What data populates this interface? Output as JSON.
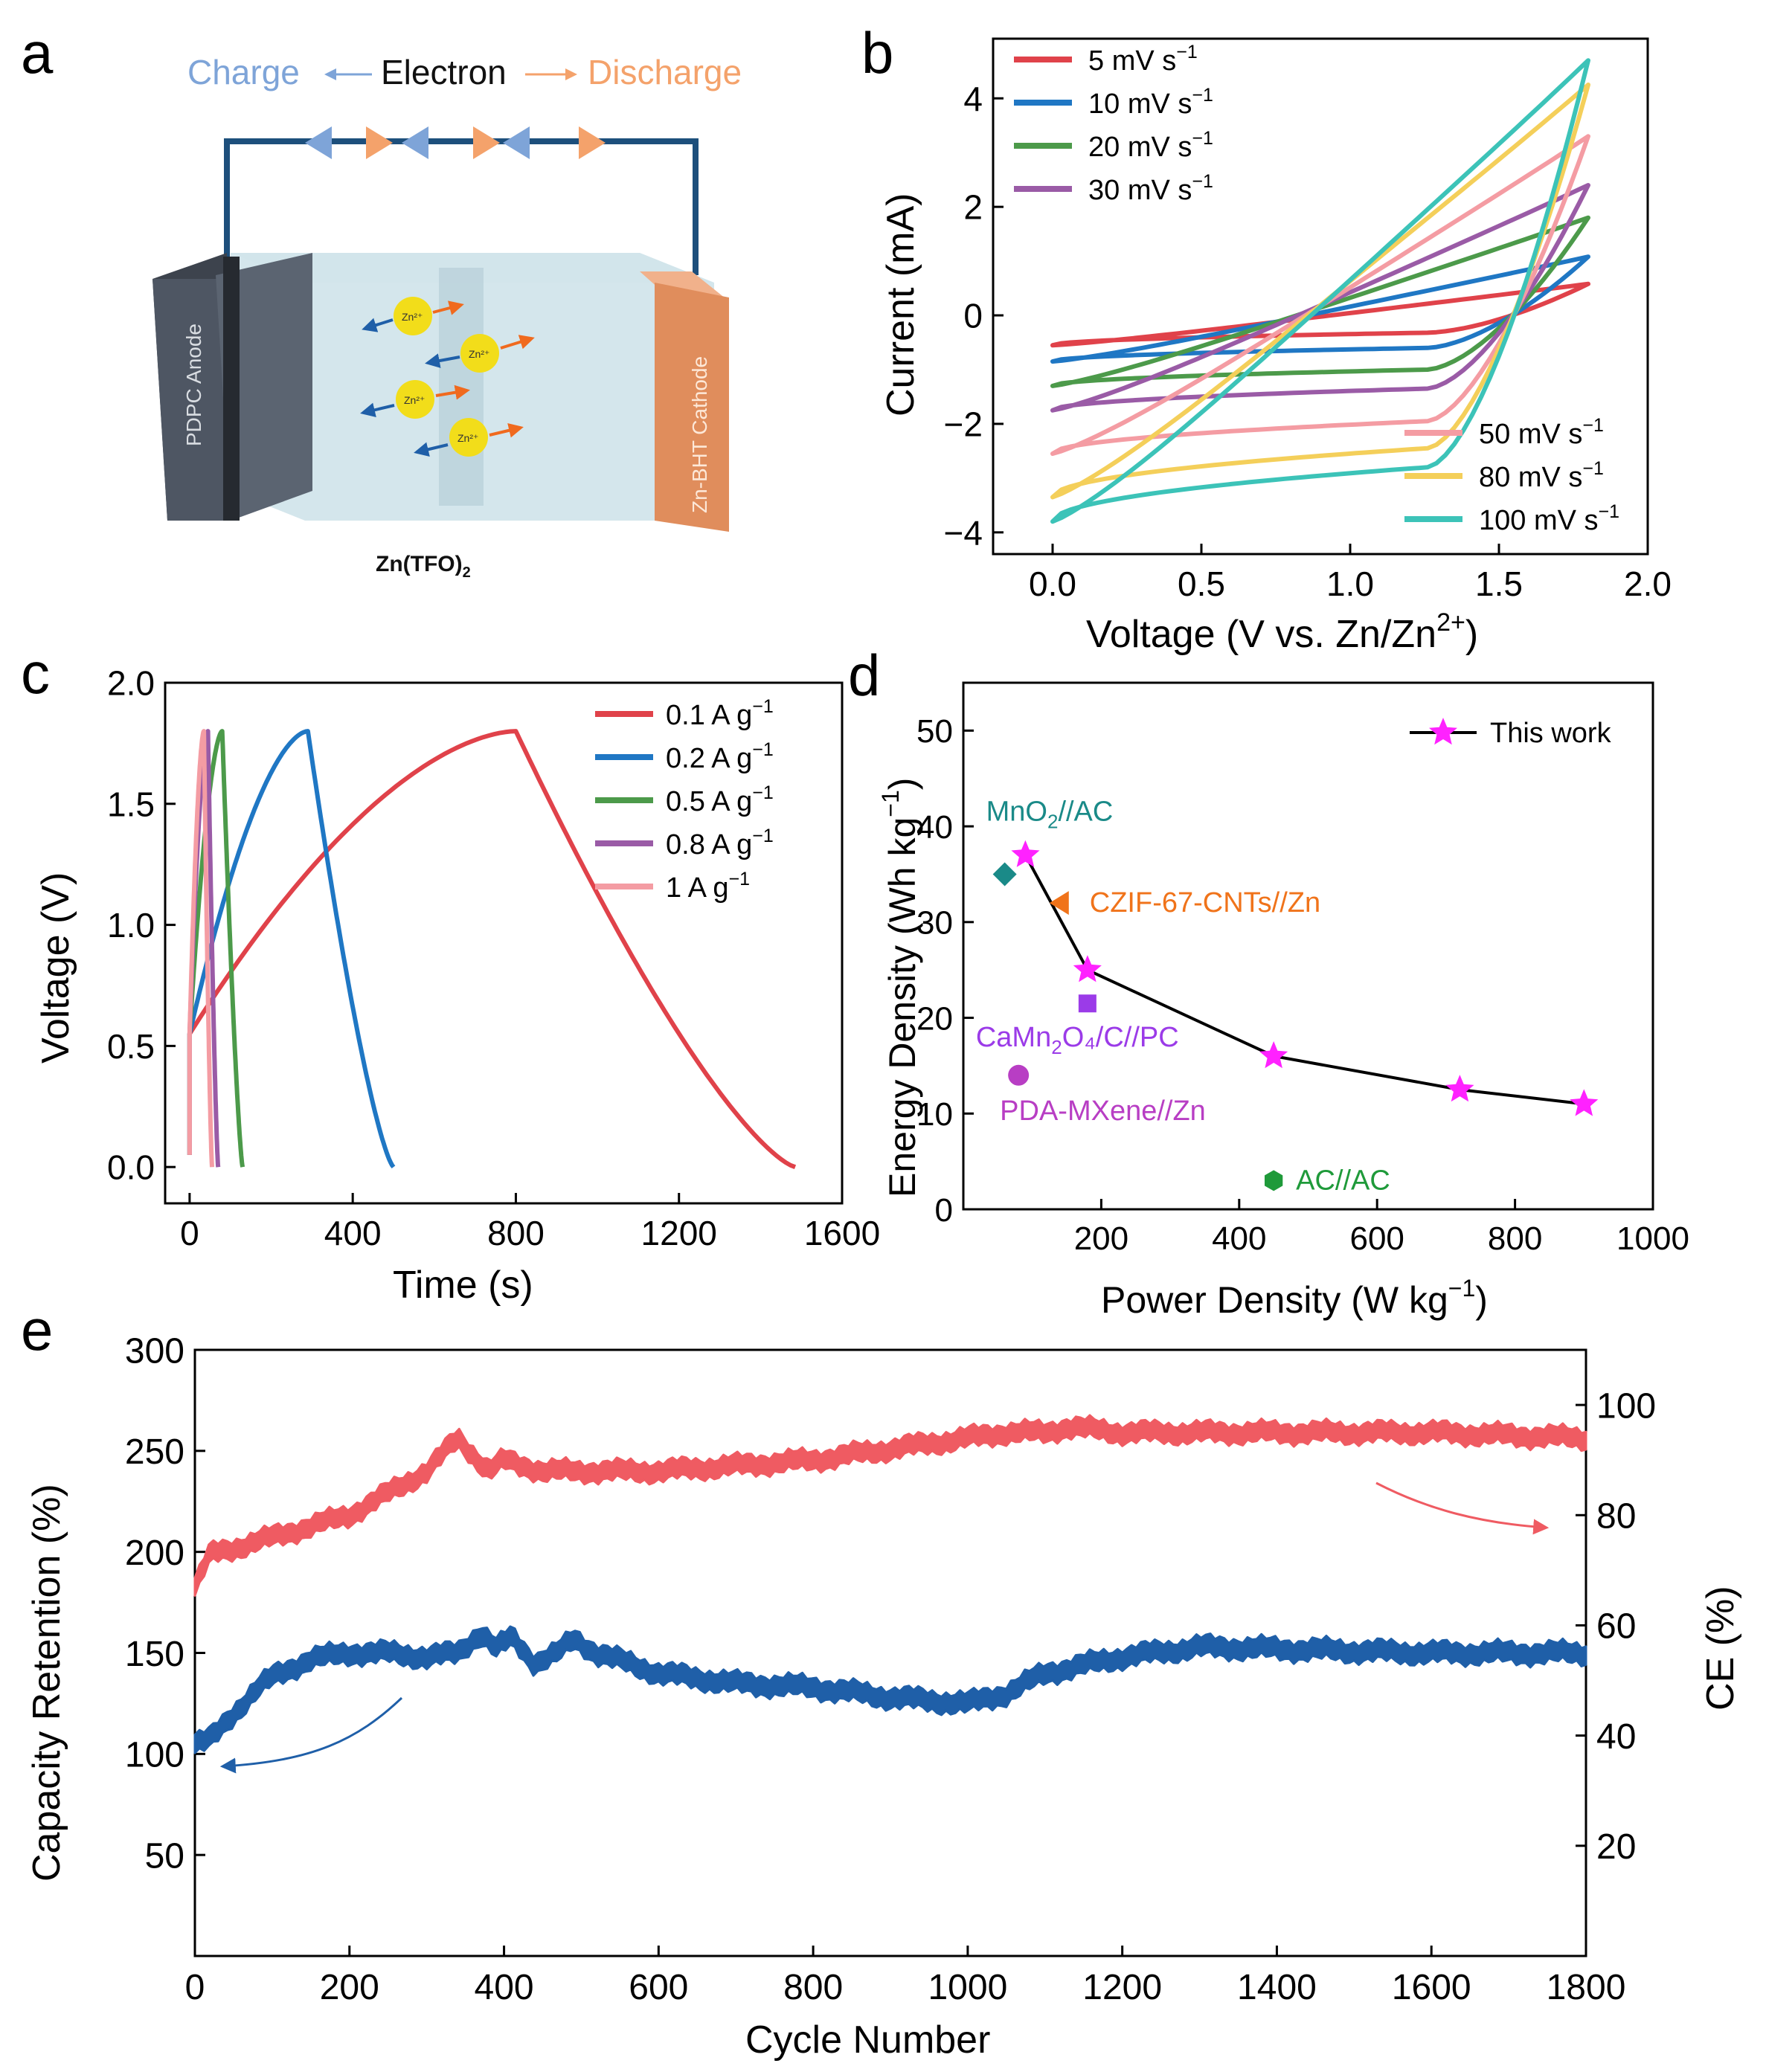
{
  "panel_labels": {
    "a": "a",
    "b": "b",
    "c": "c",
    "d": "d",
    "e": "e"
  },
  "panel_a": {
    "charge_label": "Charge",
    "electron_label": "Electron",
    "discharge_label": "Discharge",
    "anode_label": "PDPC Anode",
    "cathode_label": "Zn-BHT Cathode",
    "ion_label": "Zn²⁺",
    "electrolyte_label": "Zn(TFO)",
    "electrolyte_sub": "2",
    "colors": {
      "charge": "#7ea4d8",
      "discharge": "#f4a26b",
      "wire": "#1d4f7c",
      "anode": "#4e5663",
      "cathode": "#e08d5c",
      "electrolyte": "#cfe3ea",
      "ion": "#f2dd1a"
    }
  },
  "chart_data": [
    {
      "id": "b",
      "type": "line",
      "xlabel": "Voltage (V vs. Zn/Zn",
      "xlabel_sup": "2+",
      "xlabel_end": ")",
      "ylabel": "Current (mA)",
      "xlim": [
        -0.2,
        2.0
      ],
      "ylim": [
        -4.4,
        5.1
      ],
      "xticks": [
        0.0,
        0.5,
        1.0,
        1.5,
        2.0
      ],
      "xtick_labels": [
        "0.0",
        "0.5",
        "1.0",
        "1.5",
        "2.0"
      ],
      "yticks": [
        -4,
        -2,
        0,
        2,
        4
      ],
      "ytick_labels": [
        "−4",
        "−2",
        "0",
        "2",
        "4"
      ],
      "series": [
        {
          "name": "5 mV s",
          "sup": "−1",
          "color": "#e0424a",
          "upper_start": -0.55,
          "upper_end": 0.58,
          "lower_start": -0.55,
          "lower_mid": -0.32,
          "lower_end": 0.58
        },
        {
          "name": "10 mV s",
          "sup": "−1",
          "color": "#1f77c4",
          "upper_start": -0.85,
          "upper_end": 1.08,
          "lower_start": -0.85,
          "lower_mid": -0.6,
          "lower_end": 1.08
        },
        {
          "name": "20 mV s",
          "sup": "−1",
          "color": "#4c9a4a",
          "upper_start": -1.3,
          "upper_end": 1.8,
          "lower_start": -1.3,
          "lower_mid": -1.0,
          "lower_end": 1.8
        },
        {
          "name": "30 mV s",
          "sup": "−1",
          "color": "#9a5ba6",
          "upper_start": -1.75,
          "upper_end": 2.4,
          "lower_start": -1.75,
          "lower_mid": -1.35,
          "lower_end": 2.4
        },
        {
          "name": "50 mV s",
          "sup": "−1",
          "color": "#f49ca3",
          "upper_start": -2.55,
          "upper_end": 3.3,
          "lower_start": -2.55,
          "lower_mid": -1.95,
          "lower_end": 3.3
        },
        {
          "name": "80 mV s",
          "sup": "−1",
          "color": "#f4cf5a",
          "upper_start": -3.35,
          "upper_end": 4.25,
          "lower_start": -3.35,
          "lower_mid": -2.45,
          "lower_end": 4.25
        },
        {
          "name": "100 mV s",
          "sup": "−1",
          "color": "#3cc3b8",
          "upper_start": -3.8,
          "upper_end": 4.7,
          "lower_start": -3.8,
          "lower_mid": -2.8,
          "lower_end": 4.7
        }
      ]
    },
    {
      "id": "c",
      "type": "line",
      "xlabel": "Time (s)",
      "ylabel": "Voltage (V)",
      "xlim": [
        -60,
        1600
      ],
      "ylim": [
        -0.15,
        2.0
      ],
      "xticks": [
        0,
        400,
        800,
        1200,
        1600
      ],
      "xtick_labels": [
        "0",
        "400",
        "800",
        "1200",
        "1600"
      ],
      "yticks": [
        0.0,
        0.5,
        1.0,
        1.5,
        2.0
      ],
      "ytick_labels": [
        "0.0",
        "0.5",
        "1.0",
        "1.5",
        "2.0"
      ],
      "series": [
        {
          "name": "0.1 A g",
          "sup": "−1",
          "color": "#e0424a",
          "t_charge": 800,
          "t_end": 1485
        },
        {
          "name": "0.2 A g",
          "sup": "−1",
          "color": "#1f77c4",
          "t_charge": 290,
          "t_end": 500
        },
        {
          "name": "0.5 A g",
          "sup": "−1",
          "color": "#4c9a4a",
          "t_charge": 80,
          "t_end": 130
        },
        {
          "name": "0.8 A g",
          "sup": "−1",
          "color": "#9a5ba6",
          "t_charge": 45,
          "t_end": 70
        },
        {
          "name": "1 A g",
          "sup": "−1",
          "color": "#f49ca3",
          "t_charge": 35,
          "t_end": 55
        }
      ]
    },
    {
      "id": "d",
      "type": "scatter",
      "xlabel": "Power Density (W kg",
      "xlabel_sup": "−1",
      "xlabel_end": ")",
      "ylabel": "Energy Density (Wh kg",
      "ylabel_sup": "−1",
      "ylabel_end": ")",
      "xlim": [
        0,
        1000
      ],
      "ylim": [
        0,
        55
      ],
      "xticks": [
        200,
        400,
        600,
        800,
        1000
      ],
      "xtick_labels": [
        "200",
        "400",
        "600",
        "800",
        "1000"
      ],
      "yticks": [
        0,
        10,
        20,
        30,
        40,
        50
      ],
      "ytick_labels": [
        "0",
        "10",
        "20",
        "30",
        "40",
        "50"
      ],
      "legend": "This work",
      "this_work": {
        "color": "#ff22ff",
        "x": [
          90,
          180,
          450,
          720,
          900
        ],
        "y": [
          37,
          25,
          16,
          12.5,
          11
        ]
      },
      "refs": [
        {
          "name": "MnO",
          "sub": "2",
          "rest": "//AC",
          "color": "#1a8a88",
          "shape": "diamond",
          "x": 60,
          "y": 35
        },
        {
          "name": "CZIF-67-CNTs//Zn",
          "sub": "",
          "rest": "",
          "color": "#f0731a",
          "shape": "triangle-left",
          "x": 140,
          "y": 32
        },
        {
          "name": "CaMn",
          "sub": "2",
          "rest": "O₄/C//PC",
          "color": "#9b3be8",
          "shape": "square",
          "x": 180,
          "y": 21.5
        },
        {
          "name": "PDA-MXene//Zn",
          "sub": "",
          "rest": "",
          "color": "#b83ec4",
          "shape": "circle",
          "x": 80,
          "y": 14
        },
        {
          "name": "AC//AC",
          "sub": "",
          "rest": "",
          "color": "#1f9a3a",
          "shape": "hexagon",
          "x": 450,
          "y": 3
        }
      ]
    },
    {
      "id": "e",
      "type": "scatter",
      "xlabel": "Cycle Number",
      "ylabel": "Capacity Retention (%)",
      "ylabel_right": "CE (%)",
      "xlim": [
        0,
        1800
      ],
      "ylim": [
        0,
        300
      ],
      "ylim_right": [
        0,
        110
      ],
      "xticks": [
        0,
        200,
        400,
        600,
        800,
        1000,
        1200,
        1400,
        1600,
        1800
      ],
      "xtick_labels": [
        "0",
        "200",
        "400",
        "600",
        "800",
        "1000",
        "1200",
        "1400",
        "1600",
        "1800"
      ],
      "yticks": [
        50,
        100,
        150,
        200,
        250,
        300
      ],
      "ytick_labels": [
        "50",
        "100",
        "150",
        "200",
        "250",
        "300"
      ],
      "yticks_right": [
        20,
        40,
        60,
        80,
        100
      ],
      "ytick_labels_right": [
        "20",
        "40",
        "60",
        "80",
        "100"
      ],
      "series": [
        {
          "name": "CE",
          "color": "#ef5b62",
          "axis": "right",
          "x": [
            0,
            20,
            50,
            100,
            150,
            200,
            250,
            300,
            340,
            360,
            380,
            400,
            450,
            500,
            600,
            700,
            800,
            900,
            1000,
            1050,
            1100,
            1130,
            1200,
            1400,
            1600,
            1800
          ],
          "y": [
            67,
            73,
            74,
            76,
            78,
            80,
            84,
            88,
            94,
            91,
            88,
            90,
            88,
            88,
            88,
            89,
            90,
            92,
            94,
            95,
            95,
            96,
            95,
            95,
            95,
            94
          ]
        },
        {
          "name": "Capacity Retention",
          "color": "#1f5fa8",
          "axis": "left",
          "x": [
            0,
            20,
            50,
            80,
            100,
            150,
            200,
            250,
            300,
            340,
            370,
            390,
            410,
            440,
            470,
            490,
            520,
            600,
            700,
            800,
            900,
            1000,
            1050,
            1100,
            1200,
            1300,
            1400,
            1600,
            1800
          ],
          "y": [
            105,
            107,
            120,
            132,
            138,
            147,
            150,
            150,
            148,
            150,
            160,
            152,
            158,
            145,
            150,
            157,
            150,
            140,
            135,
            133,
            128,
            125,
            130,
            140,
            148,
            153,
            152,
            150,
            150
          ]
        }
      ]
    }
  ]
}
